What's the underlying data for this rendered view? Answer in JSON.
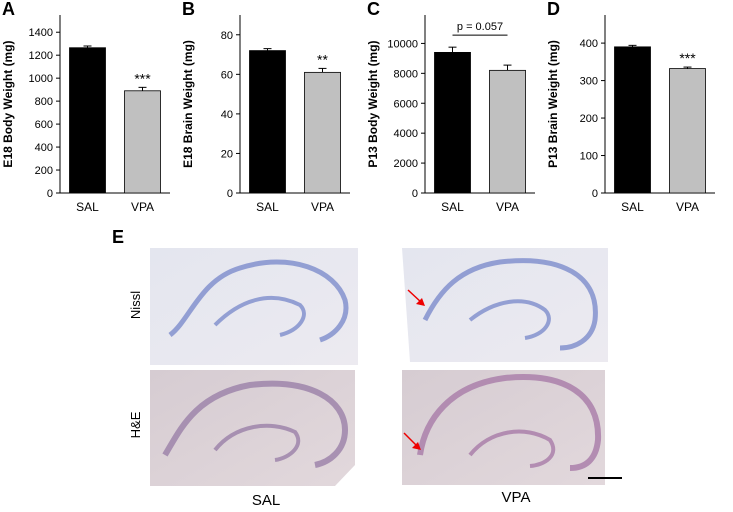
{
  "chart_data": [
    {
      "type": "bar",
      "panel": "A",
      "y_label": "E18 Body Weight (mg)",
      "categories": [
        "SAL",
        "VPA"
      ],
      "values": [
        1265,
        890
      ],
      "errors": [
        15,
        30
      ],
      "colors": [
        "#000000",
        "#c0c0c0"
      ],
      "ylim": [
        0,
        1550
      ],
      "yticks": [
        0,
        200,
        400,
        600,
        800,
        1000,
        1200,
        1400
      ],
      "annotation": "***"
    },
    {
      "type": "bar",
      "panel": "B",
      "y_label": "E18 Brain Weight (mg)",
      "categories": [
        "SAL",
        "VPA"
      ],
      "values": [
        72,
        61
      ],
      "errors": [
        1,
        2
      ],
      "colors": [
        "#000000",
        "#c0c0c0"
      ],
      "ylim": [
        0,
        90
      ],
      "yticks": [
        0,
        20,
        40,
        60,
        80
      ],
      "annotation": "**"
    },
    {
      "type": "bar",
      "panel": "C",
      "y_label": "P13 Body Weight (mg)",
      "categories": [
        "SAL",
        "VPA"
      ],
      "values": [
        9400,
        8200
      ],
      "errors": [
        350,
        350
      ],
      "colors": [
        "#000000",
        "#c0c0c0"
      ],
      "ylim": [
        0,
        11900
      ],
      "yticks": [
        0,
        2000,
        4000,
        6000,
        8000,
        10000
      ],
      "annotation": "p = 0.057",
      "annotation_bracket": true
    },
    {
      "type": "bar",
      "panel": "D",
      "y_label": "P13 Brain Weight (mg)",
      "categories": [
        "SAL",
        "VPA"
      ],
      "values": [
        390,
        332
      ],
      "errors": [
        4,
        4
      ],
      "colors": [
        "#000000",
        "#c0c0c0"
      ],
      "ylim": [
        0,
        475
      ],
      "yticks": [
        0,
        100,
        200,
        300,
        400
      ],
      "annotation": "***"
    }
  ],
  "panel_e": {
    "label": "E",
    "rows": [
      "Nissl",
      "H&E"
    ],
    "columns": [
      "SAL",
      "VPA"
    ]
  }
}
